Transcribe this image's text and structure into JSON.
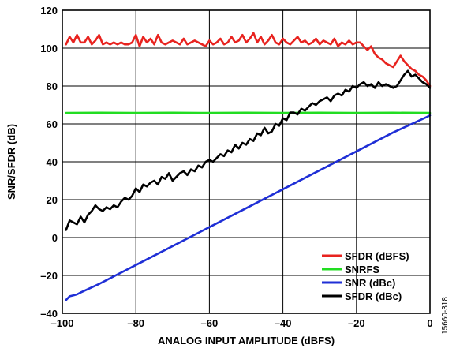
{
  "chart_data": {
    "type": "line",
    "xlabel": "ANALOG INPUT AMPLITUDE (dBFS)",
    "ylabel": "SNR/SFDR (dB)",
    "xlim": [
      -100,
      0
    ],
    "ylim": [
      -40,
      120
    ],
    "xticks": [
      -100,
      -80,
      -60,
      -40,
      -20,
      0
    ],
    "yticks": [
      -40,
      -20,
      0,
      20,
      40,
      60,
      80,
      100,
      120
    ],
    "xtick_labels": [
      "–100",
      "–80",
      "–60",
      "–40",
      "–20",
      "0"
    ],
    "ytick_labels": [
      "–40",
      "–20",
      "0",
      "20",
      "40",
      "60",
      "80",
      "100",
      "120"
    ],
    "grid": true,
    "legend_position": "bottom-right",
    "side_note": "15660-318",
    "series": [
      {
        "name": "SFDR (dBFS)",
        "color": "#e8231f",
        "x": [
          -99,
          -98,
          -97,
          -96,
          -95,
          -94,
          -93,
          -92,
          -91,
          -90,
          -89,
          -88,
          -87,
          -86,
          -85,
          -84,
          -83,
          -82,
          -81,
          -80,
          -79,
          -78,
          -77,
          -76,
          -75,
          -74,
          -73,
          -72,
          -71,
          -70,
          -69,
          -68,
          -67,
          -66,
          -65,
          -64,
          -63,
          -62,
          -61,
          -60,
          -59,
          -58,
          -57,
          -56,
          -55,
          -54,
          -53,
          -52,
          -51,
          -50,
          -49,
          -48,
          -47,
          -46,
          -45,
          -44,
          -43,
          -42,
          -41,
          -40,
          -39,
          -38,
          -37,
          -36,
          -35,
          -34,
          -33,
          -32,
          -31,
          -30,
          -29,
          -28,
          -27,
          -26,
          -25,
          -24,
          -23,
          -22,
          -21,
          -20,
          -19,
          -18,
          -17,
          -16,
          -15,
          -14,
          -13,
          -12,
          -11,
          -10,
          -9,
          -8,
          -7,
          -6,
          -5,
          -4,
          -3,
          -2,
          -1,
          0
        ],
        "y": [
          102,
          106,
          103,
          107,
          103,
          103,
          106,
          102,
          104,
          107,
          102,
          103,
          102,
          103,
          102,
          103,
          102,
          102,
          103,
          107,
          101,
          106,
          103,
          105,
          102,
          107,
          103,
          102,
          103,
          104,
          103,
          102,
          105,
          102,
          103,
          104,
          103,
          102,
          101,
          104,
          102,
          103,
          105,
          102,
          103,
          106,
          103,
          104,
          107,
          103,
          105,
          108,
          103,
          106,
          102,
          104,
          107,
          103,
          102,
          105,
          103,
          102,
          104,
          106,
          103,
          104,
          102,
          103,
          105,
          102,
          104,
          103,
          102,
          105,
          101,
          103,
          102,
          104,
          102,
          103,
          103,
          101,
          99,
          101,
          97,
          95,
          94,
          92,
          91,
          90,
          93,
          96,
          93,
          91,
          89,
          88,
          86,
          85,
          83,
          80
        ]
      },
      {
        "name": "SNRFS",
        "color": "#22dd22",
        "x": [
          -99,
          -90,
          -80,
          -70,
          -60,
          -50,
          -40,
          -30,
          -20,
          -10,
          0
        ],
        "y": [
          65.8,
          65.9,
          65.8,
          65.9,
          65.8,
          65.9,
          65.8,
          65.9,
          65.8,
          65.9,
          65.8
        ]
      },
      {
        "name": "SNR (dBc)",
        "color": "#1f2fd6",
        "x": [
          -99,
          -98,
          -97,
          -96,
          -95,
          -90,
          -80,
          -70,
          -60,
          -50,
          -40,
          -30,
          -20,
          -10,
          -1,
          0
        ],
        "y": [
          -33,
          -31,
          -30.5,
          -30,
          -29,
          -24.5,
          -14.5,
          -4.5,
          5.5,
          15.5,
          25.5,
          35.5,
          45.5,
          55.5,
          63.5,
          64.5
        ]
      },
      {
        "name": "SFDR (dBc)",
        "color": "#000000",
        "x": [
          -99,
          -98,
          -97,
          -96,
          -95,
          -94,
          -93,
          -92,
          -91,
          -90,
          -89,
          -88,
          -87,
          -86,
          -85,
          -84,
          -83,
          -82,
          -81,
          -80,
          -79,
          -78,
          -77,
          -76,
          -75,
          -74,
          -73,
          -72,
          -71,
          -70,
          -69,
          -68,
          -67,
          -66,
          -65,
          -64,
          -63,
          -62,
          -61,
          -60,
          -59,
          -58,
          -57,
          -56,
          -55,
          -54,
          -53,
          -52,
          -51,
          -50,
          -49,
          -48,
          -47,
          -46,
          -45,
          -44,
          -43,
          -42,
          -41,
          -40,
          -39,
          -38,
          -37,
          -36,
          -35,
          -34,
          -33,
          -32,
          -31,
          -30,
          -29,
          -28,
          -27,
          -26,
          -25,
          -24,
          -23,
          -22,
          -21,
          -20,
          -19,
          -18,
          -17,
          -16,
          -15,
          -14,
          -13,
          -12,
          -11,
          -10,
          -9,
          -8,
          -7,
          -6,
          -5,
          -4,
          -3,
          -2,
          -1,
          0
        ],
        "y": [
          4,
          9,
          8,
          7,
          11,
          8,
          12,
          14,
          17,
          15,
          14,
          16,
          15,
          17,
          16,
          19,
          21,
          20,
          22,
          26,
          24,
          28,
          27,
          29,
          30,
          28,
          32,
          31,
          34,
          30,
          32,
          34,
          35,
          33,
          36,
          35,
          38,
          37,
          40,
          41,
          40,
          42,
          44,
          43,
          46,
          45,
          49,
          47,
          50,
          49,
          52,
          51,
          55,
          54,
          58,
          55,
          56,
          60,
          59,
          63,
          62,
          66,
          66,
          65,
          68,
          67,
          69,
          71,
          70,
          72,
          73,
          74,
          72,
          75,
          76,
          75,
          78,
          77,
          80,
          79,
          81,
          82,
          80,
          81,
          79,
          82,
          80,
          81,
          80,
          79,
          80,
          83,
          86,
          88,
          85,
          86,
          84,
          82,
          81,
          79
        ]
      }
    ]
  }
}
